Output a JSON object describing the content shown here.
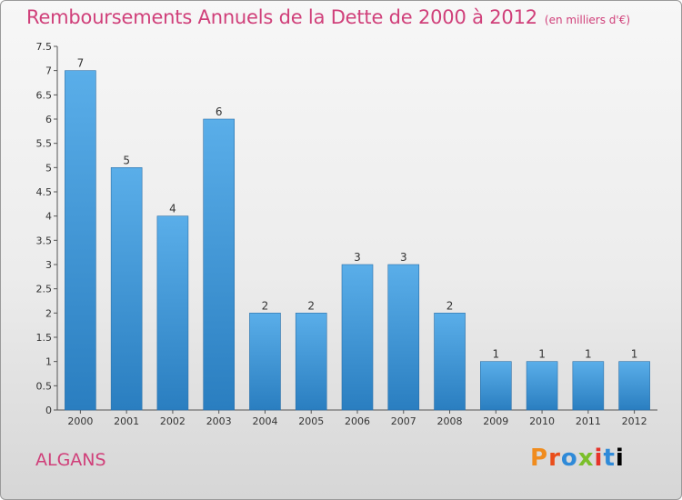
{
  "chart_data": {
    "type": "bar",
    "title": "Remboursements Annuels de la Dette de 2000 à 2012",
    "unit_label": "(en milliers d'€)",
    "categories": [
      "2000",
      "2001",
      "2002",
      "2003",
      "2004",
      "2005",
      "2006",
      "2007",
      "2008",
      "2009",
      "2010",
      "2011",
      "2012"
    ],
    "values": [
      7,
      5,
      4,
      6,
      2,
      2,
      3,
      3,
      2,
      1,
      1,
      1,
      1
    ],
    "value_labels": [
      "7",
      "5",
      "4",
      "6",
      "2",
      "2",
      "3",
      "3",
      "2",
      "1",
      "1",
      "1",
      "1"
    ],
    "ylim": [
      0,
      7.5
    ],
    "yticks": [
      0,
      0.5,
      1,
      1.5,
      2,
      2.5,
      3,
      3.5,
      4,
      4.5,
      5,
      5.5,
      6,
      6.5,
      7,
      7.5
    ],
    "ytick_labels": [
      "0",
      "0.5",
      "1",
      "1.5",
      "2",
      "2.5",
      "3",
      "3.5",
      "4",
      "4.5",
      "5",
      "5.5",
      "6",
      "6.5",
      "7",
      "7.5"
    ],
    "grid": false,
    "bar_color_top": "#5aaee9",
    "bar_color_bottom": "#2a7ec0"
  },
  "footer": {
    "town": "ALGANS",
    "logo_letters": [
      "P",
      "r",
      "o",
      "x",
      "i",
      "t",
      "i"
    ]
  },
  "colors": {
    "title": "#d0407a",
    "axis": "#555555"
  }
}
